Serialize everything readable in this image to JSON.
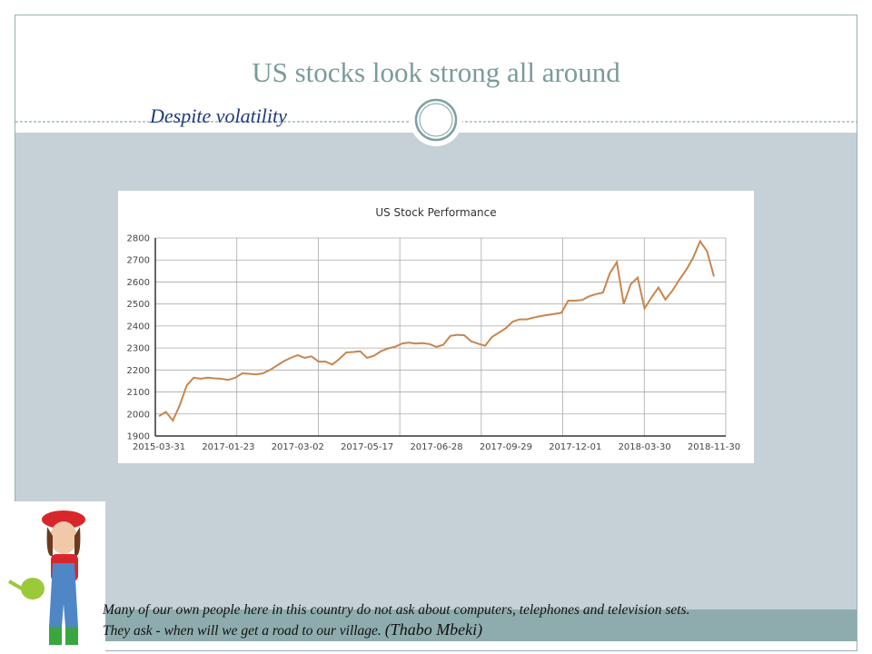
{
  "slide": {
    "title": "US stocks look strong all around",
    "subtitle": "Despite volatility",
    "quote": {
      "line1": "Many of our own people here in this country do not ask about computers, telephones and television sets.",
      "line2": "They ask - when will we get a road to our village.",
      "author": "(Thabo Mbeki)"
    }
  },
  "chart_data": {
    "type": "line",
    "title": "US Stock Performance",
    "color": "#c8864e",
    "categories": [
      "2015-03-31",
      null,
      null,
      null,
      null,
      null,
      null,
      null,
      null,
      null,
      "2017-01-23",
      null,
      null,
      null,
      null,
      null,
      null,
      null,
      null,
      null,
      "2017-03-02",
      null,
      null,
      null,
      null,
      null,
      null,
      null,
      null,
      null,
      "2017-05-17",
      null,
      null,
      null,
      null,
      null,
      null,
      null,
      null,
      null,
      "2017-06-28",
      null,
      null,
      null,
      null,
      null,
      null,
      null,
      null,
      null,
      "2017-09-29",
      null,
      null,
      null,
      null,
      null,
      null,
      null,
      null,
      null,
      "2017-12-01",
      null,
      null,
      null,
      null,
      null,
      null,
      null,
      null,
      null,
      "2018-03-30",
      null,
      null,
      null,
      null,
      null,
      null,
      null,
      null,
      null,
      "2018-11-30"
    ],
    "values": [
      1990,
      2010,
      1970,
      2040,
      2130,
      2165,
      2160,
      2165,
      2162,
      2160,
      2155,
      2165,
      2185,
      2183,
      2180,
      2185,
      2200,
      2220,
      2240,
      2255,
      2268,
      2255,
      2262,
      2238,
      2238,
      2225,
      2250,
      2280,
      2282,
      2285,
      2255,
      2265,
      2285,
      2298,
      2305,
      2320,
      2325,
      2320,
      2322,
      2318,
      2305,
      2315,
      2355,
      2360,
      2358,
      2330,
      2320,
      2310,
      2350,
      2370,
      2390,
      2420,
      2430,
      2430,
      2438,
      2445,
      2450,
      2455,
      2460,
      2515,
      2515,
      2518,
      2535,
      2545,
      2552,
      2640,
      2690,
      2500,
      2590,
      2620,
      2480,
      2530,
      2575,
      2520,
      2560,
      2610,
      2655,
      2710,
      2785,
      2740,
      2625
    ],
    "ylim": [
      1900,
      2800
    ],
    "yticks": [
      1900,
      2000,
      2100,
      2200,
      2300,
      2400,
      2500,
      2600,
      2700,
      2800
    ],
    "grid": true
  }
}
